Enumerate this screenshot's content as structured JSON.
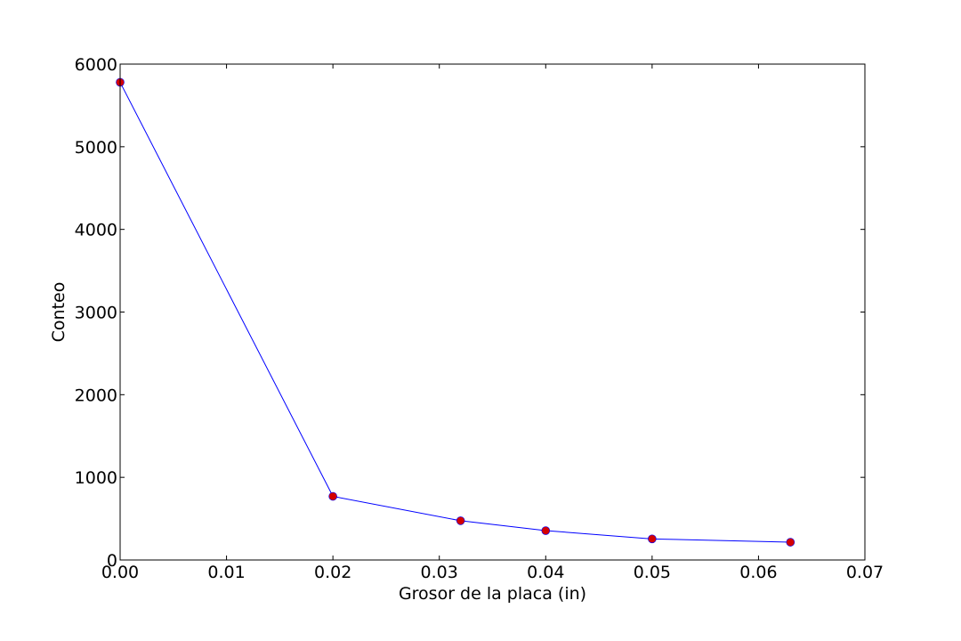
{
  "chart_data": {
    "type": "line",
    "title": "",
    "xlabel": "Grosor de la placa (in)",
    "ylabel": "Conteo",
    "xlim": [
      0,
      0.07
    ],
    "ylim": [
      0,
      6000
    ],
    "grid": false,
    "x_ticks": [
      0,
      0.01,
      0.02,
      0.03,
      0.04,
      0.05,
      0.06,
      0.07
    ],
    "x_tick_labels": [
      "0.00",
      "0.01",
      "0.02",
      "0.03",
      "0.04",
      "0.05",
      "0.06",
      "0.07"
    ],
    "y_ticks": [
      0,
      1000,
      2000,
      3000,
      4000,
      5000,
      6000
    ],
    "y_tick_labels": [
      "0",
      "1000",
      "2000",
      "3000",
      "4000",
      "5000",
      "6000"
    ],
    "series": [
      {
        "line_color": "#0000ff",
        "marker_color": "#d40000",
        "marker": "circle",
        "points": [
          {
            "x": 0.0,
            "y": 5780
          },
          {
            "x": 0.02,
            "y": 770
          },
          {
            "x": 0.032,
            "y": 475
          },
          {
            "x": 0.04,
            "y": 355
          },
          {
            "x": 0.05,
            "y": 255
          },
          {
            "x": 0.063,
            "y": 215
          }
        ]
      }
    ]
  }
}
